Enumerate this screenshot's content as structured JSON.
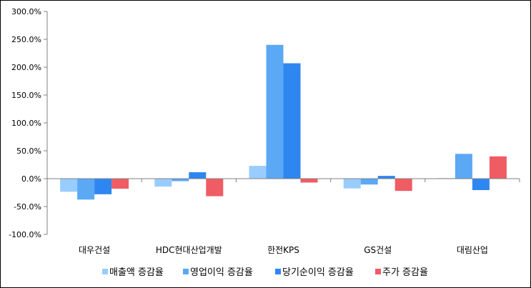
{
  "chart_data": {
    "type": "bar",
    "categories": [
      "대우건설",
      "HDC현대산업개발",
      "한전KPS",
      "GS건설",
      "대림산업"
    ],
    "series": [
      {
        "name": "매출액 증감율",
        "color": "#99ccff",
        "values": [
          -23.5,
          -14.2,
          23.0,
          -17.5,
          1.0
        ]
      },
      {
        "name": "영업이익 증감율",
        "color": "#5ba8f5",
        "values": [
          -37.5,
          -4.5,
          240.0,
          -10.5,
          44.5
        ]
      },
      {
        "name": "당기순이익 증감율",
        "color": "#2e86f0",
        "values": [
          -28.0,
          11.5,
          207.0,
          5.0,
          -20.5
        ]
      },
      {
        "name": "주가 증감율",
        "color": "#f05c64",
        "values": [
          -18.0,
          -31.5,
          -7.0,
          -22.0,
          40.0
        ]
      }
    ],
    "y_ticks": [
      "300.0%",
      "250.0%",
      "200.0%",
      "150.0%",
      "100.0%",
      "50.0%",
      "0.0%",
      "-50.0%",
      "-100.0%"
    ],
    "ylim": [
      -100,
      300
    ],
    "grid": false,
    "legend_position": "bottom",
    "title": "",
    "xlabel": "",
    "ylabel": ""
  }
}
